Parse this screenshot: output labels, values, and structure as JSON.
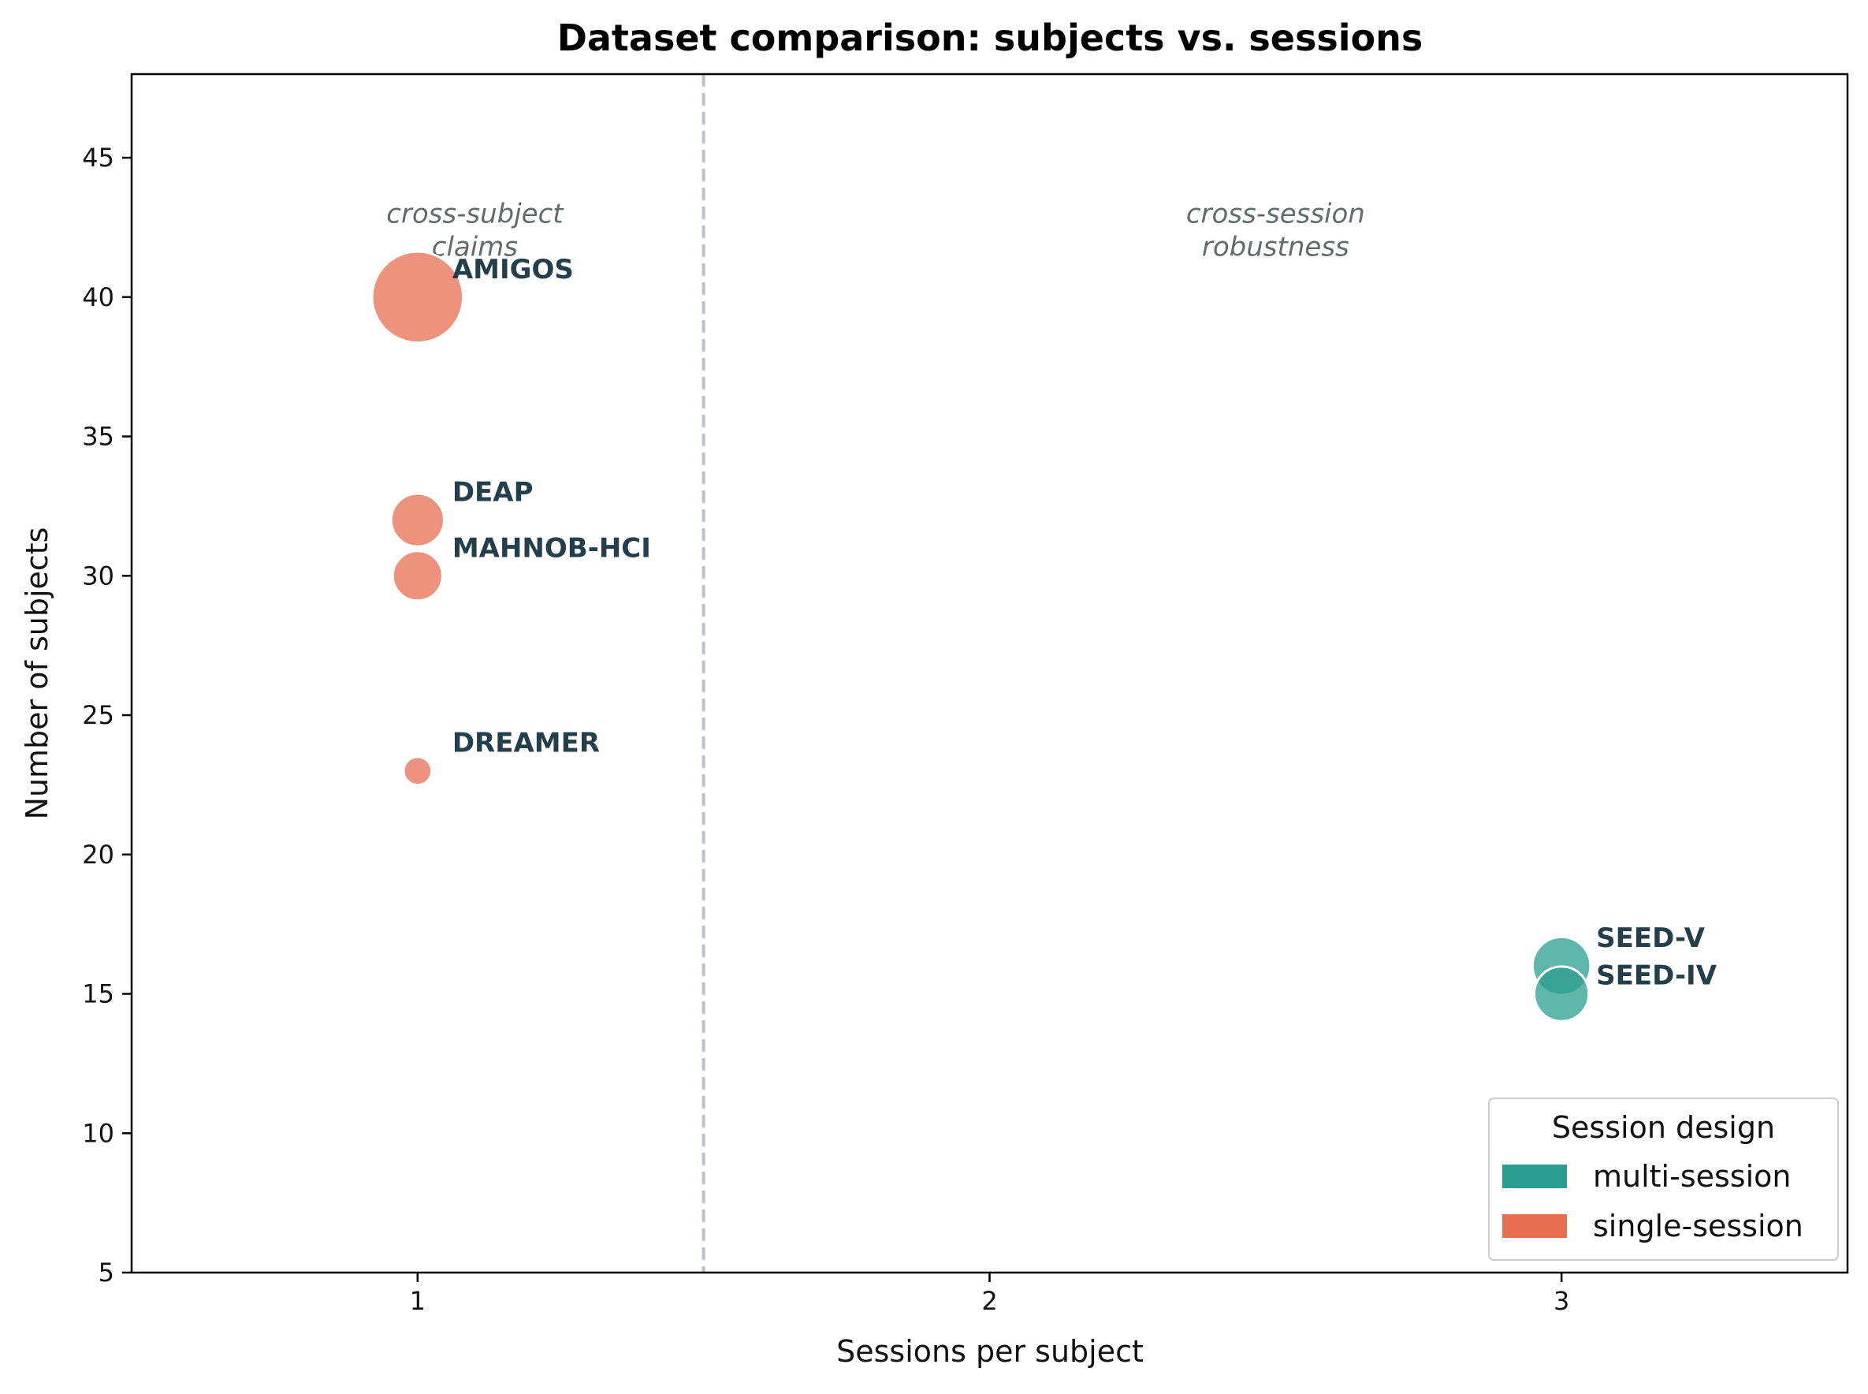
{
  "chart_data": {
    "type": "scatter",
    "title": "Dataset comparison: subjects vs. sessions",
    "xlabel": "Sessions per subject",
    "ylabel": "Number of subjects",
    "xlim": [
      0.5,
      3.5
    ],
    "ylim": [
      5,
      48
    ],
    "xticks": [
      1,
      2,
      3
    ],
    "yticks": [
      5,
      10,
      15,
      20,
      25,
      30,
      35,
      40,
      45
    ],
    "grid": false,
    "divider_x": 1.5,
    "region_labels": [
      {
        "text_lines": [
          "cross-subject",
          "claims"
        ],
        "x": 1.1,
        "y": 43
      },
      {
        "text_lines": [
          "cross-session",
          "robustness"
        ],
        "x": 2.5,
        "y": 43
      }
    ],
    "points": [
      {
        "name": "AMIGOS",
        "x": 1,
        "y": 40,
        "group": "single-session",
        "size": 5.5
      },
      {
        "name": "DEAP",
        "x": 1,
        "y": 32,
        "group": "single-session",
        "size": 3.2
      },
      {
        "name": "MAHNOB-HCI",
        "x": 1,
        "y": 30,
        "group": "single-session",
        "size": 3.0
      },
      {
        "name": "DREAMER",
        "x": 1,
        "y": 23,
        "group": "single-session",
        "size": 1.7
      },
      {
        "name": "SEED-V",
        "x": 3,
        "y": 16,
        "group": "multi-session",
        "size": 3.5
      },
      {
        "name": "SEED-IV",
        "x": 3,
        "y": 15,
        "group": "multi-session",
        "size": 3.3
      }
    ],
    "legend": {
      "title": "Session design",
      "placement": "lower-right",
      "entries": [
        {
          "label": "multi-session",
          "color": "#2a9d8f"
        },
        {
          "label": "single-session",
          "color": "#e76f51"
        }
      ]
    },
    "colors": {
      "single-session": "#e76f51",
      "multi-session": "#2a9d8f"
    }
  }
}
